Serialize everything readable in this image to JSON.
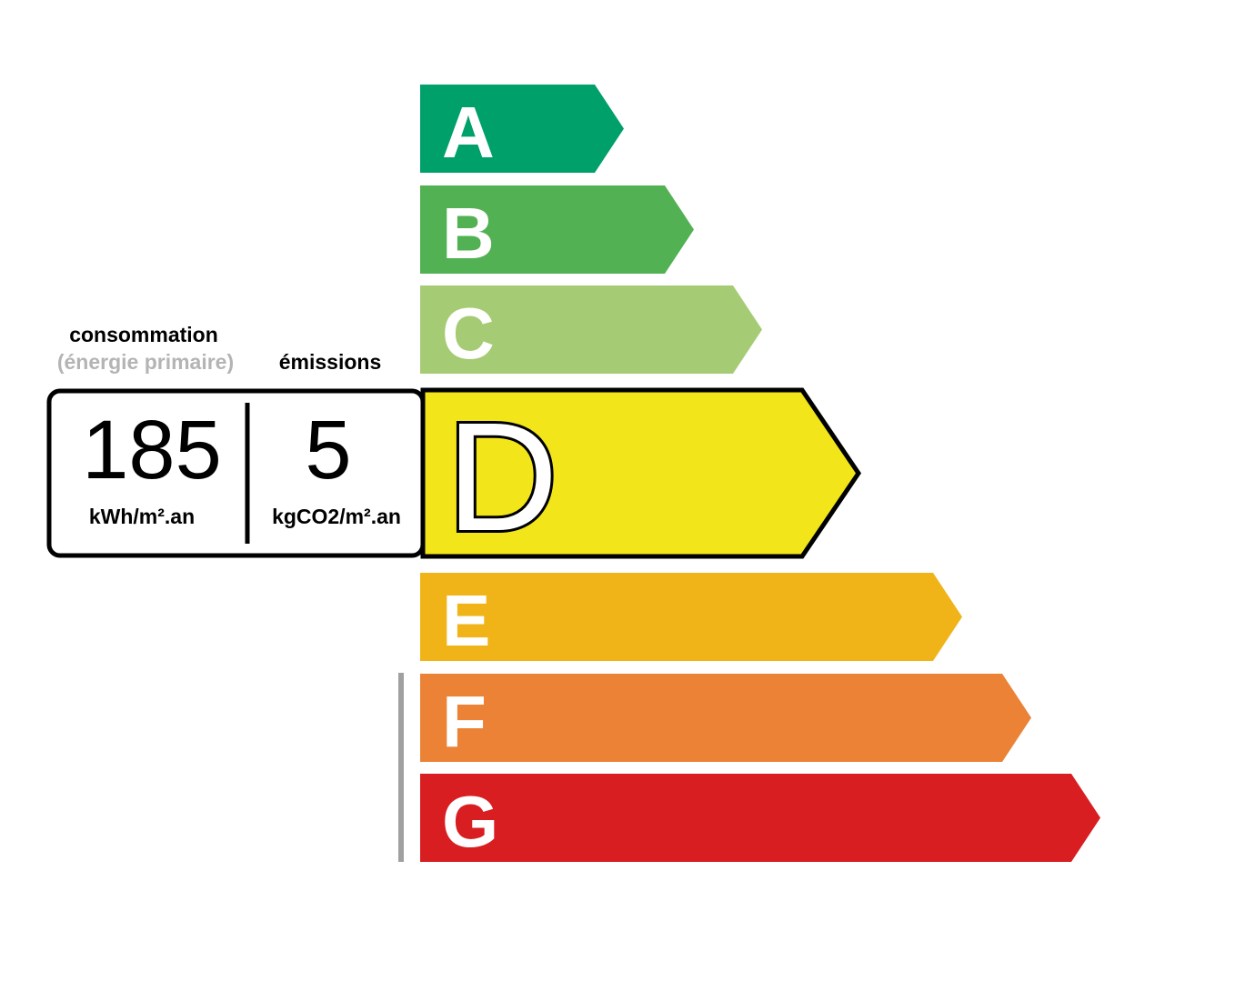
{
  "labels": {
    "consumption": "consommation",
    "consumption_sub": "(énergie primaire)",
    "emissions": "émissions"
  },
  "values": {
    "consumption_value": "185",
    "consumption_unit": "kWh/m².an",
    "emissions_value": "5",
    "emissions_unit": "kgCO2/m².an"
  },
  "current_class": "D",
  "classes": [
    {
      "letter": "A",
      "color": "#00a06a"
    },
    {
      "letter": "B",
      "color": "#52b153"
    },
    {
      "letter": "C",
      "color": "#a5cc74"
    },
    {
      "letter": "D",
      "color": "#f2e51a"
    },
    {
      "letter": "E",
      "color": "#f0b418"
    },
    {
      "letter": "F",
      "color": "#eb8235"
    },
    {
      "letter": "G",
      "color": "#d81e21"
    }
  ],
  "colors": {
    "sub_label": "#b4b4b4",
    "marker": "#a0a0a0"
  }
}
